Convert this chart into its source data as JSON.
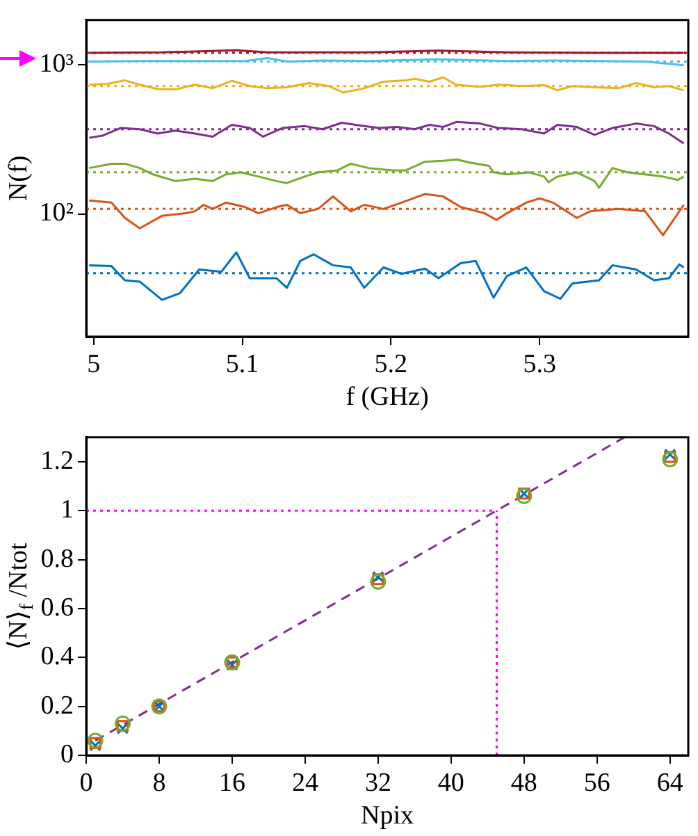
{
  "chart_data": [
    {
      "type": "line",
      "xlabel": "f (GHz)",
      "ylabel": "N(f)",
      "log": "y",
      "grid": false,
      "legend": false,
      "marker": "none",
      "line_style": "solid",
      "xlim": [
        4.995,
        5.4
      ],
      "xticks": [
        5,
        5.1,
        5.2,
        5.3
      ],
      "ylim": [
        15,
        2000
      ],
      "yticks": [
        {
          "value": 100,
          "label": "10²"
        },
        {
          "value": 1000,
          "label": "10³"
        }
      ],
      "series": [
        {
          "color": "#a2142f",
          "x": [
            4.997,
            5.046,
            5.096,
            5.117,
            5.185,
            5.232,
            5.278,
            5.34,
            5.397
          ],
          "values": [
            1205,
            1214,
            1255,
            1214,
            1214,
            1247,
            1214,
            1205,
            1205
          ]
        },
        {
          "color": "#4dbeee",
          "x": [
            4.997,
            5.031,
            5.077,
            5.102,
            5.117,
            5.13,
            5.154,
            5.185,
            5.232,
            5.278,
            5.309,
            5.34,
            5.371,
            5.397
          ],
          "values": [
            1054,
            1062,
            1062,
            1062,
            1112,
            1054,
            1069,
            1062,
            1091,
            1062,
            1069,
            1062,
            1054,
            994
          ]
        },
        {
          "color": "#edb120",
          "x": [
            4.997,
            5.009,
            5.021,
            5.031,
            5.043,
            5.055,
            5.068,
            5.08,
            5.093,
            5.105,
            5.117,
            5.13,
            5.145,
            5.158,
            5.168,
            5.182,
            5.195,
            5.21,
            5.216,
            5.226,
            5.235,
            5.244,
            5.26,
            5.272,
            5.288,
            5.303,
            5.312,
            5.322,
            5.337,
            5.353,
            5.365,
            5.377,
            5.387,
            5.397
          ],
          "values": [
            736,
            745,
            787,
            736,
            688,
            684,
            736,
            697,
            782,
            721,
            697,
            707,
            755,
            721,
            652,
            697,
            771,
            787,
            807,
            771,
            824,
            736,
            712,
            736,
            721,
            731,
            675,
            721,
            707,
            697,
            755,
            707,
            721,
            675
          ]
        },
        {
          "color": "#7e2f8e",
          "x": [
            4.997,
            5.006,
            5.018,
            5.031,
            5.043,
            5.055,
            5.068,
            5.08,
            5.093,
            5.105,
            5.114,
            5.127,
            5.142,
            5.154,
            5.167,
            5.176,
            5.192,
            5.204,
            5.216,
            5.226,
            5.235,
            5.244,
            5.26,
            5.272,
            5.288,
            5.303,
            5.312,
            5.325,
            5.337,
            5.349,
            5.365,
            5.377,
            5.387,
            5.397
          ],
          "values": [
            324,
            335,
            377,
            370,
            346,
            362,
            346,
            330,
            396,
            377,
            330,
            377,
            388,
            370,
            409,
            396,
            377,
            383,
            370,
            396,
            383,
            414,
            404,
            377,
            370,
            346,
            396,
            383,
            339,
            377,
            404,
            388,
            346,
            297
          ]
        },
        {
          "color": "#77ac30",
          "x": [
            4.997,
            5.012,
            5.021,
            5.031,
            5.04,
            5.055,
            5.068,
            5.08,
            5.089,
            5.099,
            5.111,
            5.123,
            5.13,
            5.142,
            5.151,
            5.164,
            5.173,
            5.185,
            5.201,
            5.21,
            5.223,
            5.235,
            5.244,
            5.253,
            5.266,
            5.269,
            5.278,
            5.293,
            5.303,
            5.306,
            5.312,
            5.325,
            5.337,
            5.34,
            5.349,
            5.359,
            5.371,
            5.383,
            5.393,
            5.397
          ],
          "values": [
            203,
            217,
            217,
            203,
            184,
            166,
            172,
            166,
            184,
            190,
            178,
            166,
            161,
            178,
            190,
            196,
            217,
            203,
            196,
            196,
            224,
            227,
            232,
            221,
            210,
            190,
            184,
            190,
            178,
            163,
            178,
            190,
            166,
            150,
            203,
            190,
            184,
            178,
            169,
            178
          ]
        },
        {
          "color": "#d95319",
          "x": [
            4.997,
            5.012,
            5.021,
            5.031,
            5.046,
            5.062,
            5.068,
            5.074,
            5.08,
            5.089,
            5.102,
            5.111,
            5.123,
            5.13,
            5.139,
            5.151,
            5.161,
            5.173,
            5.182,
            5.195,
            5.207,
            5.223,
            5.235,
            5.247,
            5.263,
            5.271,
            5.278,
            5.291,
            5.3,
            5.309,
            5.325,
            5.334,
            5.353,
            5.371,
            5.383,
            5.397
          ],
          "values": [
            123,
            119,
            94,
            80,
            97,
            101,
            104,
            115,
            108,
            119,
            111,
            101,
            111,
            115,
            101,
            108,
            131,
            104,
            115,
            108,
            119,
            136,
            131,
            111,
            101,
            91,
            101,
            119,
            127,
            119,
            94,
            104,
            108,
            104,
            72,
            115
          ]
        },
        {
          "color": "#0072bd",
          "x": [
            4.997,
            5.012,
            5.021,
            5.031,
            5.046,
            5.058,
            5.071,
            5.086,
            5.096,
            5.105,
            5.123,
            5.13,
            5.139,
            5.148,
            5.161,
            5.173,
            5.182,
            5.195,
            5.207,
            5.223,
            5.232,
            5.247,
            5.257,
            5.269,
            5.278,
            5.291,
            5.303,
            5.314,
            5.322,
            5.34,
            5.349,
            5.365,
            5.377,
            5.387,
            5.394,
            5.397
          ],
          "values": [
            45.2,
            44.6,
            35.8,
            35.1,
            26.5,
            29.3,
            42.3,
            40.9,
            55.2,
            37.0,
            37.0,
            31.9,
            48.3,
            53.5,
            45.2,
            43.7,
            31.9,
            43.7,
            39.6,
            42.9,
            37.0,
            46.8,
            48.3,
            27.4,
            38.3,
            43.7,
            30.3,
            26.9,
            34.1,
            35.8,
            45.2,
            42.3,
            35.8,
            37.0,
            45.8,
            43.7
          ]
        }
      ],
      "ref_lines": [
        {
          "axis": "y",
          "value": 1205,
          "color": "#a2142f",
          "line_style": "dotted"
        },
        {
          "axis": "y",
          "value": 1054,
          "color": "#4dbeee",
          "line_style": "dotted"
        },
        {
          "axis": "y",
          "value": 721,
          "color": "#edb120",
          "line_style": "dotted"
        },
        {
          "axis": "y",
          "value": 370,
          "color": "#7e2f8e",
          "line_style": "dotted"
        },
        {
          "axis": "y",
          "value": 190,
          "color": "#77ac30",
          "line_style": "dotted"
        },
        {
          "axis": "y",
          "value": 108,
          "color": "#d95319",
          "line_style": "dotted"
        },
        {
          "axis": "y",
          "value": 40,
          "color": "#0072bd",
          "line_style": "dotted"
        }
      ]
    },
    {
      "type": "scatter",
      "xlabel": "Npix",
      "ylabel": "⟨N⟩$_{f}$ /Ntot",
      "grid": false,
      "legend": false,
      "xlim": [
        0,
        66
      ],
      "xticks": [
        0,
        8,
        16,
        24,
        32,
        40,
        48,
        56,
        64
      ],
      "ylim": [
        0,
        1.3
      ],
      "yticks": [
        0,
        0.2,
        0.4,
        0.6,
        0.8,
        1,
        1.2
      ],
      "x": [
        1,
        4,
        8,
        16,
        32,
        48,
        64
      ],
      "series": [
        {
          "color": "#77ac30",
          "marker": "circle",
          "values": [
            0.06,
            0.13,
            0.2,
            0.38,
            0.71,
            1.06,
            1.21
          ]
        },
        {
          "color": "#d95319",
          "marker": "square",
          "values": [
            0.05,
            0.12,
            0.2,
            0.38,
            0.72,
            1.07,
            1.22
          ]
        },
        {
          "color": "#0072bd",
          "marker": "cross",
          "values": [
            0.04,
            0.11,
            0.2,
            0.37,
            0.73,
            1.07,
            1.23
          ]
        },
        {
          "type": "line",
          "color": "#7e2f8e",
          "marker": "none",
          "line_style": "dashed",
          "x": [
            1,
            59
          ],
          "values": [
            0.06,
            1.3
          ]
        },
        {
          "type": "line",
          "color": "#ff00ff",
          "marker": "none",
          "line_style": "dotted",
          "x": [
            0,
            45
          ],
          "values": [
            1,
            1
          ]
        },
        {
          "type": "line",
          "color": "#ff00ff",
          "marker": "none",
          "line_style": "dotted",
          "x": [
            45,
            45
          ],
          "values": [
            0,
            1
          ]
        }
      ]
    }
  ]
}
